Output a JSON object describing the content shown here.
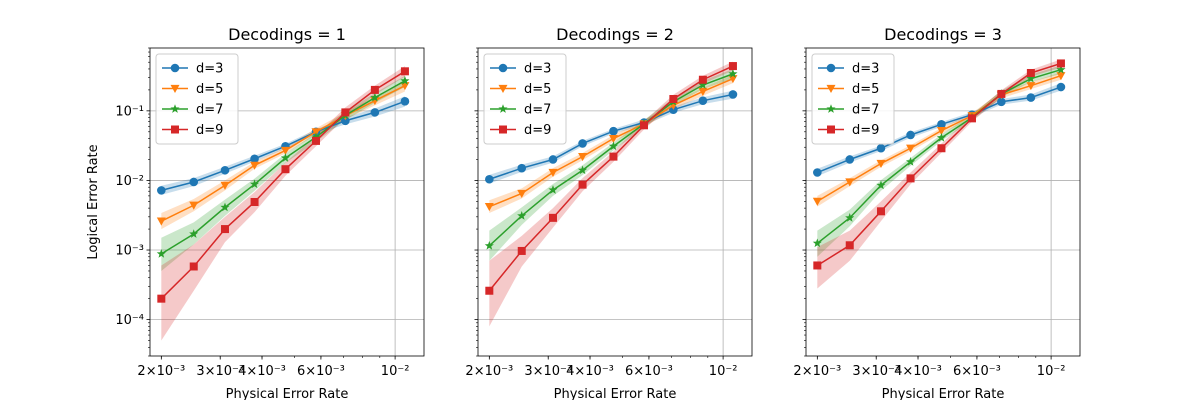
{
  "chart_data": [
    {
      "type": "line",
      "title": "Decodings = 1",
      "xlabel": "Physical Error Rate",
      "ylabel": "Logical Error Rate",
      "xscale": "log",
      "yscale": "log",
      "xlim": [
        0.00185,
        0.0122
      ],
      "ylim": [
        3e-05,
        0.8
      ],
      "grid": true,
      "legend_position": "upper-left",
      "x_ticks": [
        {
          "value": 0.002,
          "label": "2×10⁻³"
        },
        {
          "value": 0.003,
          "label": "3×10⁻³"
        },
        {
          "value": 0.004,
          "label": "4×10⁻³"
        },
        {
          "value": 0.006,
          "label": "6×10⁻³"
        },
        {
          "value": 0.01,
          "label": "10⁻²"
        }
      ],
      "y_ticks": [
        {
          "value": 0.0001,
          "label": "10⁻⁴"
        },
        {
          "value": 0.001,
          "label": "10⁻³"
        },
        {
          "value": 0.01,
          "label": "10⁻²"
        },
        {
          "value": 0.1,
          "label": "10⁻¹"
        }
      ],
      "x": [
        0.002,
        0.0025,
        0.0031,
        0.0038,
        0.0047,
        0.0058,
        0.0071,
        0.0087,
        0.0107
      ],
      "series": [
        {
          "name": "d=3",
          "color": "#1f77b4",
          "marker": "circle",
          "values": [
            0.0072,
            0.0095,
            0.014,
            0.0205,
            0.031,
            0.05,
            0.072,
            0.095,
            0.137
          ],
          "lower": [
            0.0062,
            0.0083,
            0.0125,
            0.0186,
            0.0285,
            0.046,
            0.064,
            0.083,
            0.115
          ],
          "upper": [
            0.0084,
            0.0108,
            0.0157,
            0.0226,
            0.0337,
            0.054,
            0.081,
            0.108,
            0.162
          ]
        },
        {
          "name": "d=5",
          "color": "#ff7f0e",
          "marker": "triangle-down",
          "values": [
            0.0026,
            0.0044,
            0.0085,
            0.0165,
            0.027,
            0.05,
            0.085,
            0.14,
            0.23
          ],
          "lower": [
            0.002,
            0.0036,
            0.0072,
            0.0147,
            0.0245,
            0.045,
            0.075,
            0.12,
            0.19
          ],
          "upper": [
            0.0034,
            0.0054,
            0.01,
            0.0185,
            0.03,
            0.056,
            0.096,
            0.16,
            0.27
          ]
        },
        {
          "name": "d=7",
          "color": "#2ca02c",
          "marker": "star",
          "values": [
            0.00088,
            0.0017,
            0.0041,
            0.0088,
            0.021,
            0.042,
            0.086,
            0.155,
            0.27
          ],
          "lower": [
            0.0005,
            0.0012,
            0.0031,
            0.0071,
            0.0178,
            0.036,
            0.074,
            0.13,
            0.22
          ],
          "upper": [
            0.0015,
            0.0025,
            0.0053,
            0.0106,
            0.0243,
            0.048,
            0.098,
            0.18,
            0.32
          ]
        },
        {
          "name": "d=9",
          "color": "#d62728",
          "marker": "square",
          "values": [
            0.0002,
            0.00058,
            0.002,
            0.0049,
            0.0145,
            0.037,
            0.095,
            0.2,
            0.37
          ],
          "lower": [
            5e-05,
            0.00026,
            0.0013,
            0.0035,
            0.0117,
            0.031,
            0.08,
            0.17,
            0.31
          ],
          "upper": [
            0.0006,
            0.0012,
            0.003,
            0.0068,
            0.018,
            0.044,
            0.112,
            0.23,
            0.44
          ]
        }
      ]
    },
    {
      "type": "line",
      "title": "Decodings = 2",
      "xlabel": "Physical Error Rate",
      "ylabel": "",
      "xscale": "log",
      "yscale": "log",
      "xlim": [
        0.00185,
        0.0122
      ],
      "ylim": [
        3e-05,
        0.8
      ],
      "grid": true,
      "legend_position": "upper-left",
      "x_ticks": [
        {
          "value": 0.002,
          "label": "2×10⁻³"
        },
        {
          "value": 0.003,
          "label": "3×10⁻³"
        },
        {
          "value": 0.004,
          "label": "4×10⁻³"
        },
        {
          "value": 0.006,
          "label": "6×10⁻³"
        },
        {
          "value": 0.01,
          "label": "10⁻²"
        }
      ],
      "y_ticks": [
        {
          "value": 0.0001,
          "label": ""
        },
        {
          "value": 0.001,
          "label": ""
        },
        {
          "value": 0.01,
          "label": ""
        },
        {
          "value": 0.1,
          "label": ""
        }
      ],
      "x": [
        0.002,
        0.0025,
        0.0031,
        0.0038,
        0.0047,
        0.0058,
        0.0071,
        0.0087,
        0.0107
      ],
      "series": [
        {
          "name": "d=3",
          "color": "#1f77b4",
          "marker": "circle",
          "values": [
            0.0104,
            0.015,
            0.02,
            0.034,
            0.051,
            0.068,
            0.104,
            0.14,
            0.172
          ],
          "lower": [
            0.009,
            0.0133,
            0.018,
            0.031,
            0.047,
            0.062,
            0.094,
            0.125,
            0.15
          ],
          "upper": [
            0.012,
            0.0169,
            0.0222,
            0.037,
            0.055,
            0.075,
            0.115,
            0.157,
            0.195
          ]
        },
        {
          "name": "d=5",
          "color": "#ff7f0e",
          "marker": "triangle-down",
          "values": [
            0.0042,
            0.0065,
            0.013,
            0.022,
            0.04,
            0.065,
            0.12,
            0.19,
            0.29
          ],
          "lower": [
            0.0034,
            0.0055,
            0.0113,
            0.0195,
            0.036,
            0.058,
            0.105,
            0.165,
            0.25
          ],
          "upper": [
            0.0052,
            0.0077,
            0.015,
            0.0248,
            0.045,
            0.073,
            0.136,
            0.215,
            0.33
          ]
        },
        {
          "name": "d=7",
          "color": "#2ca02c",
          "marker": "star",
          "values": [
            0.00115,
            0.0031,
            0.0073,
            0.014,
            0.031,
            0.065,
            0.135,
            0.235,
            0.34
          ],
          "lower": [
            0.0007,
            0.0023,
            0.006,
            0.0119,
            0.027,
            0.057,
            0.12,
            0.205,
            0.29
          ],
          "upper": [
            0.0019,
            0.0041,
            0.0089,
            0.0165,
            0.035,
            0.074,
            0.152,
            0.27,
            0.4
          ]
        },
        {
          "name": "d=9",
          "color": "#d62728",
          "marker": "square",
          "values": [
            0.00026,
            0.00097,
            0.0029,
            0.0087,
            0.022,
            0.062,
            0.148,
            0.28,
            0.44
          ],
          "lower": [
            8e-05,
            0.00058,
            0.0021,
            0.007,
            0.0185,
            0.054,
            0.128,
            0.245,
            0.38
          ],
          "upper": [
            0.0007,
            0.0016,
            0.004,
            0.0108,
            0.026,
            0.071,
            0.17,
            0.32,
            0.51
          ]
        }
      ]
    },
    {
      "type": "line",
      "title": "Decodings = 3",
      "xlabel": "Physical Error Rate",
      "ylabel": "",
      "xscale": "log",
      "yscale": "log",
      "xlim": [
        0.00185,
        0.0122
      ],
      "ylim": [
        3e-05,
        0.8
      ],
      "grid": true,
      "legend_position": "upper-left",
      "x_ticks": [
        {
          "value": 0.002,
          "label": "2×10⁻³"
        },
        {
          "value": 0.003,
          "label": "3×10⁻³"
        },
        {
          "value": 0.004,
          "label": "4×10⁻³"
        },
        {
          "value": 0.006,
          "label": "6×10⁻³"
        },
        {
          "value": 0.01,
          "label": "10⁻²"
        }
      ],
      "y_ticks": [
        {
          "value": 0.0001,
          "label": ""
        },
        {
          "value": 0.001,
          "label": ""
        },
        {
          "value": 0.01,
          "label": ""
        },
        {
          "value": 0.1,
          "label": ""
        }
      ],
      "x": [
        0.002,
        0.0025,
        0.0031,
        0.0038,
        0.0047,
        0.0058,
        0.0071,
        0.0087,
        0.0107
      ],
      "series": [
        {
          "name": "d=3",
          "color": "#1f77b4",
          "marker": "circle",
          "values": [
            0.013,
            0.02,
            0.029,
            0.045,
            0.064,
            0.088,
            0.135,
            0.155,
            0.22
          ],
          "lower": [
            0.0115,
            0.018,
            0.0265,
            0.041,
            0.059,
            0.081,
            0.123,
            0.14,
            0.195
          ],
          "upper": [
            0.0147,
            0.0222,
            0.0317,
            0.049,
            0.069,
            0.096,
            0.148,
            0.172,
            0.25
          ]
        },
        {
          "name": "d=5",
          "color": "#ff7f0e",
          "marker": "triangle-down",
          "values": [
            0.005,
            0.0095,
            0.0175,
            0.029,
            0.052,
            0.085,
            0.17,
            0.23,
            0.32
          ],
          "lower": [
            0.0042,
            0.0083,
            0.0157,
            0.0262,
            0.047,
            0.077,
            0.152,
            0.205,
            0.28
          ],
          "upper": [
            0.006,
            0.0108,
            0.0195,
            0.032,
            0.057,
            0.093,
            0.19,
            0.26,
            0.36
          ]
        },
        {
          "name": "d=7",
          "color": "#2ca02c",
          "marker": "star",
          "values": [
            0.00125,
            0.0029,
            0.0085,
            0.0185,
            0.041,
            0.08,
            0.175,
            0.29,
            0.39
          ],
          "lower": [
            0.0008,
            0.0022,
            0.0071,
            0.0162,
            0.037,
            0.072,
            0.157,
            0.26,
            0.34
          ],
          "upper": [
            0.0019,
            0.0038,
            0.0101,
            0.021,
            0.046,
            0.089,
            0.195,
            0.33,
            0.45
          ]
        },
        {
          "name": "d=9",
          "color": "#d62728",
          "marker": "square",
          "values": [
            0.0006,
            0.00117,
            0.0036,
            0.0107,
            0.029,
            0.078,
            0.175,
            0.35,
            0.48
          ],
          "lower": [
            0.00028,
            0.0007,
            0.0026,
            0.0088,
            0.025,
            0.07,
            0.155,
            0.31,
            0.42
          ],
          "upper": [
            0.0011,
            0.0019,
            0.005,
            0.013,
            0.034,
            0.087,
            0.198,
            0.39,
            0.55
          ]
        }
      ]
    }
  ]
}
